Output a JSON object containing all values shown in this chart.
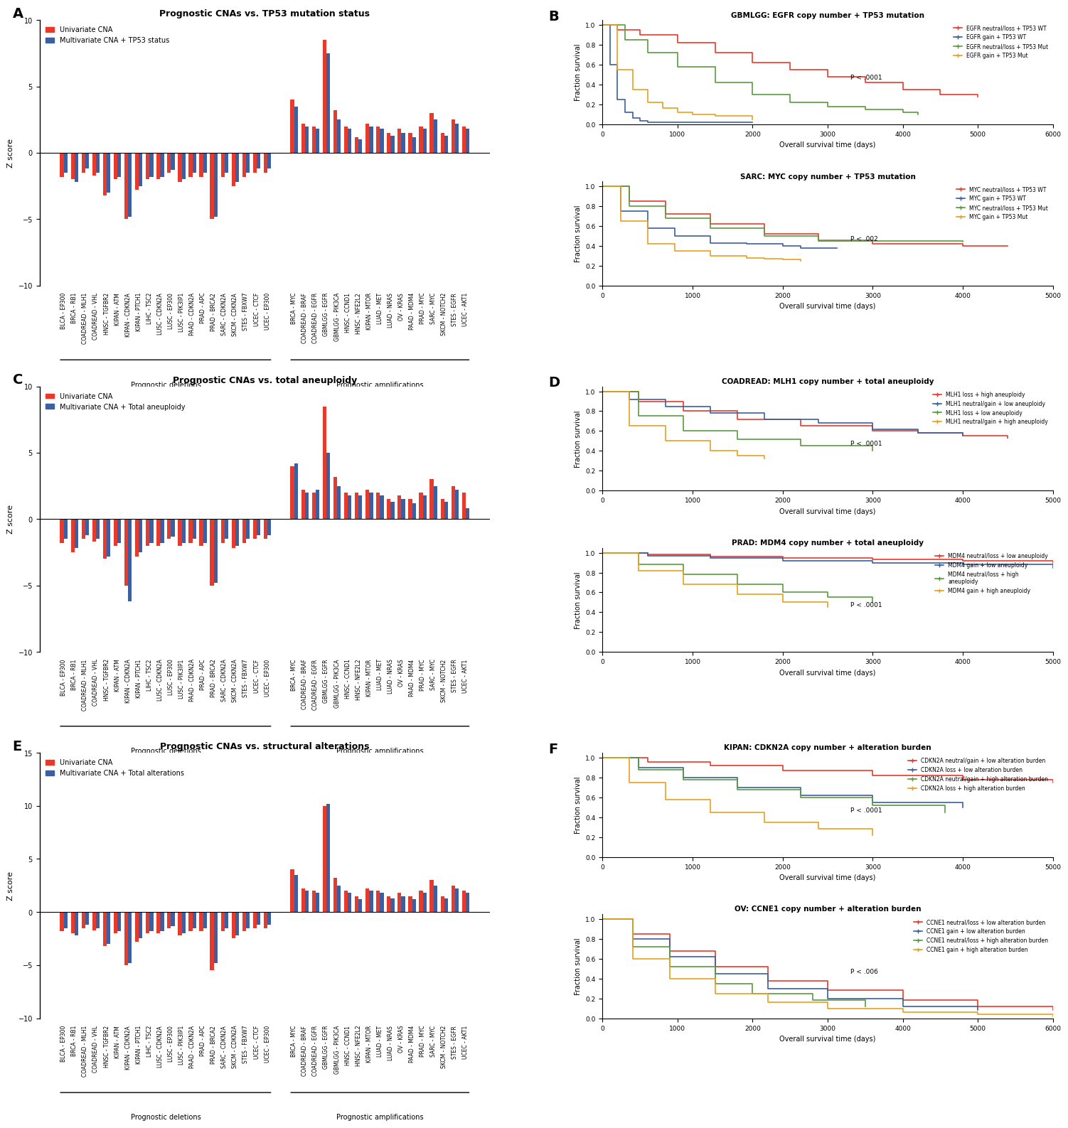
{
  "panel_A": {
    "title": "Prognostic CNAs vs. TP53 mutation status",
    "ylabel": "Z score",
    "legend1": "Univariate CNA",
    "legend2": "Multivariate CNA + TP53 status",
    "ylim": [
      -10,
      10
    ],
    "yticks": [
      -10,
      -5,
      0,
      5,
      10
    ],
    "deletions_labels": [
      "BLCA - EP300",
      "BRCA - RB1",
      "COADREAD - MLH1",
      "COADREAD - VHL",
      "HNSC - TGFBR2",
      "KIPAN - ATM",
      "KIPAN - CDKN2A",
      "KIPAN - PTCH1",
      "LIHC - TSC2",
      "LUSC - CDKN2A",
      "LUSC - EP300",
      "LUSC - PIK3IP1",
      "PAAD - CDKN2A",
      "PRAD - APC",
      "PRAD - BRCA2",
      "SARC - CDKN2A",
      "SKCM - CDKN2A",
      "STES - FBXW7",
      "UCEC - CTCF",
      "UCEC - EP300"
    ],
    "deletions_red": [
      -1.8,
      -2.0,
      -1.5,
      -1.7,
      -3.2,
      -2.0,
      -5.0,
      -2.8,
      -2.0,
      -2.0,
      -1.5,
      -2.2,
      -1.8,
      -1.8,
      -5.0,
      -1.8,
      -2.5,
      -1.8,
      -1.5,
      -1.5
    ],
    "deletions_blue": [
      -1.5,
      -2.2,
      -1.2,
      -1.5,
      -3.0,
      -1.8,
      -4.8,
      -2.5,
      -1.8,
      -1.8,
      -1.3,
      -2.0,
      -1.5,
      -1.5,
      -4.8,
      -1.5,
      -2.2,
      -1.5,
      -1.2,
      -1.2
    ],
    "amplifications_labels": [
      "BRCA - MYC",
      "COADREAD - BRAF",
      "COADREAD - EGFR",
      "GBMLGG - EGFR",
      "GBMLGG - PIK3CA",
      "HNSC - CCND1",
      "HNSC - NFE2L2",
      "KIPAN - MTOR",
      "LUAD - MET",
      "LUAD - NRAS",
      "OV - KRAS",
      "PAAD - MDM4",
      "PRAD - MYC",
      "SARC - MYC",
      "SKCM - NOTCH2",
      "STES - EGFR",
      "UCEC - AKT1"
    ],
    "amplifications_red": [
      4.0,
      2.2,
      2.0,
      8.5,
      3.2,
      2.0,
      1.2,
      2.2,
      2.0,
      1.5,
      1.8,
      1.5,
      2.0,
      3.0,
      1.5,
      2.5,
      2.0
    ],
    "amplifications_blue": [
      3.5,
      2.0,
      1.8,
      7.5,
      2.5,
      1.8,
      1.0,
      2.0,
      1.8,
      1.3,
      1.5,
      1.2,
      1.8,
      2.5,
      1.3,
      2.2,
      1.8
    ]
  },
  "panel_C": {
    "title": "Prognostic CNAs vs. total aneuploidy",
    "ylabel": "Z score",
    "legend1": "Univariate CNA",
    "legend2": "Multivariate CNA + Total aneuploidy",
    "ylim": [
      -10,
      10
    ],
    "yticks": [
      -10,
      -5,
      0,
      5,
      10
    ],
    "deletions_labels": [
      "BLCA - EP300",
      "BRCA - RB1",
      "COADREAD - MLH1",
      "COADREAD - VHL",
      "HNSC - TGFBR2",
      "KIPAN - ATM",
      "KIPAN - CDKN2A",
      "KIPAN - PTCH1",
      "LIHC - TSC2",
      "LUSC - CDKN2A",
      "LUSC - EP300",
      "LUSC - PIK3IP1",
      "PAAD - CDKN2A",
      "PRAD - APC",
      "PRAD - BRCA2",
      "SARC - CDKN2A",
      "SKCM - CDKN2A",
      "STES - FBXW7",
      "UCEC - CTCF",
      "UCEC - EP300"
    ],
    "deletions_red": [
      -1.8,
      -2.5,
      -1.5,
      -1.7,
      -3.0,
      -2.0,
      -5.0,
      -2.8,
      -2.0,
      -2.0,
      -1.5,
      -2.0,
      -1.8,
      -2.0,
      -5.0,
      -1.8,
      -2.2,
      -1.8,
      -1.5,
      -1.5
    ],
    "deletions_blue": [
      -1.5,
      -2.2,
      -1.2,
      -1.5,
      -2.8,
      -1.8,
      -6.2,
      -2.5,
      -1.8,
      -1.8,
      -1.3,
      -1.8,
      -1.5,
      -1.8,
      -4.8,
      -1.5,
      -2.0,
      -1.5,
      -1.2,
      -1.2
    ],
    "amplifications_labels": [
      "BRCA - MYC",
      "COADREAD - BRAF",
      "COADREAD - EGFR",
      "GBMLGG - EGFR",
      "GBMLGG - PIK3CA",
      "HNSC - CCND1",
      "HNSC - NFE2L2",
      "KIPAN - MTOR",
      "LUAD - MET",
      "LUAD - NRAS",
      "OV - KRAS",
      "PAAD - MDM4",
      "PRAD - MYC",
      "SARC - MYC",
      "SKCM - NOTCH2",
      "STES - EGFR",
      "UCEC - AKT1"
    ],
    "amplifications_red": [
      4.0,
      2.2,
      2.0,
      8.5,
      3.2,
      2.0,
      2.0,
      2.2,
      2.0,
      1.5,
      1.8,
      1.5,
      2.0,
      3.0,
      1.5,
      2.5,
      2.0
    ],
    "amplifications_blue": [
      4.2,
      2.0,
      2.2,
      5.0,
      2.5,
      1.8,
      1.8,
      2.0,
      1.8,
      1.3,
      1.5,
      1.2,
      1.8,
      2.5,
      1.3,
      2.2,
      0.8
    ]
  },
  "panel_E": {
    "title": "Prognostic CNAs vs. structural alterations",
    "ylabel": "Z score",
    "legend1": "Univariate CNA",
    "legend2": "Multivariate CNA + Total alterations",
    "ylim": [
      -10,
      15
    ],
    "yticks": [
      -10,
      -5,
      0,
      5,
      10,
      15
    ],
    "deletions_labels": [
      "BLCA - EP300",
      "BRCA - RB1",
      "COADREAD - MLH1",
      "COADREAD - VHL",
      "HNSC - TGFBR2",
      "KIPAN - ATM",
      "KIPAN - CDKN2A",
      "KIPAN - PTCH1",
      "LIHC - TSC2",
      "LUSC - CDKN2A",
      "LUSC - EP300",
      "LUSC - PIK3IP1",
      "PAAD - CDKN2A",
      "PRAD - APC",
      "PRAD - BRCA2",
      "SARC - CDKN2A",
      "SKCM - CDKN2A",
      "STES - FBXW7",
      "UCEC - CTCF",
      "UCEC - EP300"
    ],
    "deletions_red": [
      -1.8,
      -2.0,
      -1.5,
      -1.7,
      -3.2,
      -2.0,
      -5.0,
      -2.8,
      -2.0,
      -2.0,
      -1.5,
      -2.2,
      -1.8,
      -1.8,
      -5.5,
      -1.8,
      -2.5,
      -1.8,
      -1.5,
      -1.5
    ],
    "deletions_blue": [
      -1.5,
      -2.2,
      -1.2,
      -1.5,
      -3.0,
      -1.8,
      -4.8,
      -2.5,
      -1.8,
      -1.8,
      -1.3,
      -2.0,
      -1.5,
      -1.5,
      -4.8,
      -1.5,
      -2.2,
      -1.5,
      -1.2,
      -1.2
    ],
    "amplifications_labels": [
      "BRCA - MYC",
      "COADREAD - BRAF",
      "COADREAD - EGFR",
      "GBMLGG - EGFR",
      "GBMLGG - PIK3CA",
      "HNSC - CCND1",
      "HNSC - NFE2L2",
      "KIPAN - MTOR",
      "LUAD - MET",
      "LUAD - NRAS",
      "OV - KRAS",
      "PAAD - MDM4",
      "PRAD - MYC",
      "SARC - MYC",
      "SKCM - NOTCH2",
      "STES - EGFR",
      "UCEC - AKT1"
    ],
    "amplifications_red": [
      4.0,
      2.2,
      2.0,
      10.0,
      3.2,
      2.0,
      1.5,
      2.2,
      2.0,
      1.5,
      1.8,
      1.5,
      2.0,
      3.0,
      1.5,
      2.5,
      2.0
    ],
    "amplifications_blue": [
      3.5,
      2.0,
      1.8,
      10.2,
      2.5,
      1.8,
      1.2,
      2.0,
      1.8,
      1.3,
      1.5,
      1.2,
      1.8,
      2.5,
      1.3,
      2.2,
      1.8
    ]
  },
  "colors": {
    "red": "#E8392A",
    "blue": "#3B5FA0",
    "km_red": "#E8392A",
    "km_blue": "#3B5FA0",
    "km_green": "#5B9A3E",
    "km_orange": "#E8A020"
  },
  "panel_B_top": {
    "title": "GBMLGG: EGFR copy number + TP53 mutation",
    "xlabel": "Overall survival time (days)",
    "ylabel": "Fraction survival",
    "pvalue": "P < .0001",
    "xmax": 6000,
    "legend": [
      "EGFR neutral/loss + TP53 WT",
      "EGFR gain + TP53 WT",
      "EGFR neutral/loss + TP53 Mut",
      "EGFR gain + TP53 Mut"
    ],
    "curves": {
      "red": {
        "x": [
          0,
          200,
          500,
          1000,
          1500,
          2000,
          2500,
          3000,
          3500,
          4000,
          4500,
          5000
        ],
        "y": [
          1.0,
          0.95,
          0.9,
          0.82,
          0.72,
          0.62,
          0.55,
          0.48,
          0.42,
          0.35,
          0.3,
          0.28
        ]
      },
      "blue": {
        "x": [
          0,
          100,
          200,
          300,
          400,
          500,
          600,
          700,
          800,
          1000,
          1500,
          2000
        ],
        "y": [
          1.0,
          0.6,
          0.25,
          0.12,
          0.06,
          0.03,
          0.02,
          0.02,
          0.02,
          0.02,
          0.02,
          0.02
        ]
      },
      "green": {
        "x": [
          0,
          300,
          600,
          1000,
          1500,
          2000,
          2500,
          3000,
          3500,
          4000,
          4200
        ],
        "y": [
          1.0,
          0.85,
          0.72,
          0.58,
          0.42,
          0.3,
          0.22,
          0.18,
          0.15,
          0.12,
          0.1
        ]
      },
      "orange": {
        "x": [
          0,
          200,
          400,
          600,
          800,
          1000,
          1200,
          1500,
          2000
        ],
        "y": [
          1.0,
          0.55,
          0.35,
          0.22,
          0.16,
          0.12,
          0.1,
          0.08,
          0.05
        ]
      }
    }
  },
  "panel_B_bot": {
    "title": "SARC: MYC copy number + TP53 mutation",
    "xlabel": "Overall survival time (days)",
    "ylabel": "Fraction survival",
    "pvalue": "P < .002",
    "xmax": 5000,
    "legend": [
      "MYC neutral/loss + TP53 WT",
      "MYC gain + TP53 WT",
      "MYC neutral/loss + TP53 Mut",
      "MYC gain + TP53 Mut"
    ],
    "curves": {
      "red": {
        "x": [
          0,
          300,
          700,
          1200,
          1800,
          2400,
          3000,
          3500,
          4000,
          4500
        ],
        "y": [
          1.0,
          0.85,
          0.72,
          0.62,
          0.52,
          0.45,
          0.42,
          0.42,
          0.4,
          0.4
        ]
      },
      "blue": {
        "x": [
          0,
          200,
          500,
          800,
          1200,
          1600,
          2000,
          2200,
          2400,
          2600
        ],
        "y": [
          1.0,
          0.75,
          0.58,
          0.5,
          0.43,
          0.42,
          0.4,
          0.38,
          0.38,
          0.38
        ]
      },
      "green": {
        "x": [
          0,
          300,
          700,
          1200,
          1800,
          2400,
          3000,
          3500,
          4000
        ],
        "y": [
          1.0,
          0.8,
          0.68,
          0.58,
          0.5,
          0.46,
          0.45,
          0.45,
          0.44
        ]
      },
      "orange": {
        "x": [
          0,
          200,
          500,
          800,
          1200,
          1600,
          1800,
          2000,
          2200
        ],
        "y": [
          1.0,
          0.65,
          0.42,
          0.35,
          0.3,
          0.28,
          0.27,
          0.26,
          0.25
        ]
      }
    }
  },
  "panel_D_top": {
    "title": "COADREAD: MLH1 copy number + total aneuploidy",
    "xlabel": "Overall survival time (days)",
    "ylabel": "Fraction survival",
    "pvalue": "P < .0001",
    "xmax": 5000,
    "legend": [
      "MLH1 loss + high aneuploidy",
      "MLH1 neutral/gain + low aneuploidy",
      "MLH1 loss + low aneuploidy",
      "MLH1 neutral/gain + high aneuploidy"
    ],
    "curves": {
      "red": {
        "x": [
          0,
          400,
          900,
          1500,
          2200,
          3000,
          3500,
          4000,
          4500
        ],
        "y": [
          1.0,
          0.9,
          0.8,
          0.72,
          0.65,
          0.6,
          0.58,
          0.55,
          0.53
        ]
      },
      "blue": {
        "x": [
          0,
          300,
          700,
          1200,
          1800,
          2400,
          3000,
          3500,
          4000
        ],
        "y": [
          1.0,
          0.92,
          0.85,
          0.78,
          0.72,
          0.68,
          0.62,
          0.58,
          0.55
        ]
      },
      "green": {
        "x": [
          0,
          400,
          900,
          1500,
          2200,
          3000
        ],
        "y": [
          1.0,
          0.75,
          0.6,
          0.52,
          0.45,
          0.4
        ]
      },
      "orange": {
        "x": [
          0,
          300,
          700,
          1200,
          1500,
          1800
        ],
        "y": [
          1.0,
          0.65,
          0.5,
          0.4,
          0.35,
          0.32
        ]
      }
    }
  },
  "panel_D_bot": {
    "title": "PRAD: MDM4 copy number + total aneuploidy",
    "xlabel": "Overall survival time (days)",
    "ylabel": "Fraction survival",
    "pvalue": "P < .0001",
    "xmax": 5000,
    "legend": [
      "MDM4 neutral/loss + low aneuploidy",
      "MDM4 gain + low aneuploidy",
      "MDM4 neutral/loss + high\naneuploidy",
      "MDM4 gain + high aneuploidy"
    ],
    "curves": {
      "red": {
        "x": [
          0,
          500,
          1200,
          2000,
          3000,
          4000,
          5000
        ],
        "y": [
          1.0,
          0.98,
          0.96,
          0.95,
          0.93,
          0.92,
          0.9
        ]
      },
      "blue": {
        "x": [
          0,
          500,
          1200,
          2000,
          3000,
          4000,
          5000
        ],
        "y": [
          1.0,
          0.97,
          0.95,
          0.92,
          0.9,
          0.88,
          0.85
        ]
      },
      "green": {
        "x": [
          0,
          400,
          900,
          1500,
          2000,
          2500,
          3000
        ],
        "y": [
          1.0,
          0.88,
          0.78,
          0.68,
          0.6,
          0.55,
          0.5
        ]
      },
      "orange": {
        "x": [
          0,
          400,
          900,
          1500,
          2000,
          2500
        ],
        "y": [
          1.0,
          0.82,
          0.68,
          0.58,
          0.5,
          0.45
        ]
      }
    }
  },
  "panel_F_top": {
    "title": "KIPAN: CDKN2A copy number + alteration burden",
    "xlabel": "Overall survival time (days)",
    "ylabel": "Fraction survival",
    "pvalue": "P < .0001",
    "xmax": 5000,
    "legend": [
      "CDKN2A neutral/gain + low alteration burden",
      "CDKN2A loss + low alteration burden",
      "CDKN2A neutral/gain + high alteration burden",
      "CDKN2A loss + high alteration burden"
    ],
    "curves": {
      "red": {
        "x": [
          0,
          500,
          1200,
          2000,
          3000,
          4000,
          5000
        ],
        "y": [
          1.0,
          0.96,
          0.92,
          0.87,
          0.82,
          0.78,
          0.75
        ]
      },
      "blue": {
        "x": [
          0,
          400,
          900,
          1500,
          2200,
          3000,
          4000
        ],
        "y": [
          1.0,
          0.9,
          0.8,
          0.7,
          0.62,
          0.55,
          0.5
        ]
      },
      "green": {
        "x": [
          0,
          400,
          900,
          1500,
          2200,
          3000,
          3800
        ],
        "y": [
          1.0,
          0.88,
          0.78,
          0.68,
          0.6,
          0.52,
          0.45
        ]
      },
      "orange": {
        "x": [
          0,
          300,
          700,
          1200,
          1800,
          2400,
          3000
        ],
        "y": [
          1.0,
          0.75,
          0.58,
          0.45,
          0.35,
          0.28,
          0.22
        ]
      }
    }
  },
  "panel_F_bot": {
    "title": "OV: CCNE1 copy number + alteration burden",
    "xlabel": "Overall survival time (days)",
    "ylabel": "Fraction survival",
    "pvalue": "P < .006",
    "xmax": 6000,
    "legend": [
      "CCNE1 neutral/loss + low alteration burden",
      "CCNE1 gain + low alteration burden",
      "CCNE1 neutral/loss + high alteration burden",
      "CCNE1 gain + high alteration burden"
    ],
    "curves": {
      "red": {
        "x": [
          0,
          400,
          900,
          1500,
          2200,
          3000,
          4000,
          5000,
          6000
        ],
        "y": [
          1.0,
          0.85,
          0.68,
          0.52,
          0.38,
          0.28,
          0.18,
          0.12,
          0.08
        ]
      },
      "blue": {
        "x": [
          0,
          400,
          900,
          1500,
          2200,
          3000,
          4000,
          5000
        ],
        "y": [
          1.0,
          0.8,
          0.62,
          0.45,
          0.3,
          0.2,
          0.12,
          0.08
        ]
      },
      "green": {
        "x": [
          0,
          400,
          900,
          1500,
          2000,
          2800,
          3500
        ],
        "y": [
          1.0,
          0.72,
          0.52,
          0.35,
          0.25,
          0.18,
          0.12
        ]
      },
      "orange": {
        "x": [
          0,
          400,
          900,
          1500,
          2200,
          3000,
          4000,
          5000,
          6000
        ],
        "y": [
          1.0,
          0.6,
          0.4,
          0.25,
          0.16,
          0.1,
          0.06,
          0.04,
          0.02
        ]
      }
    }
  }
}
